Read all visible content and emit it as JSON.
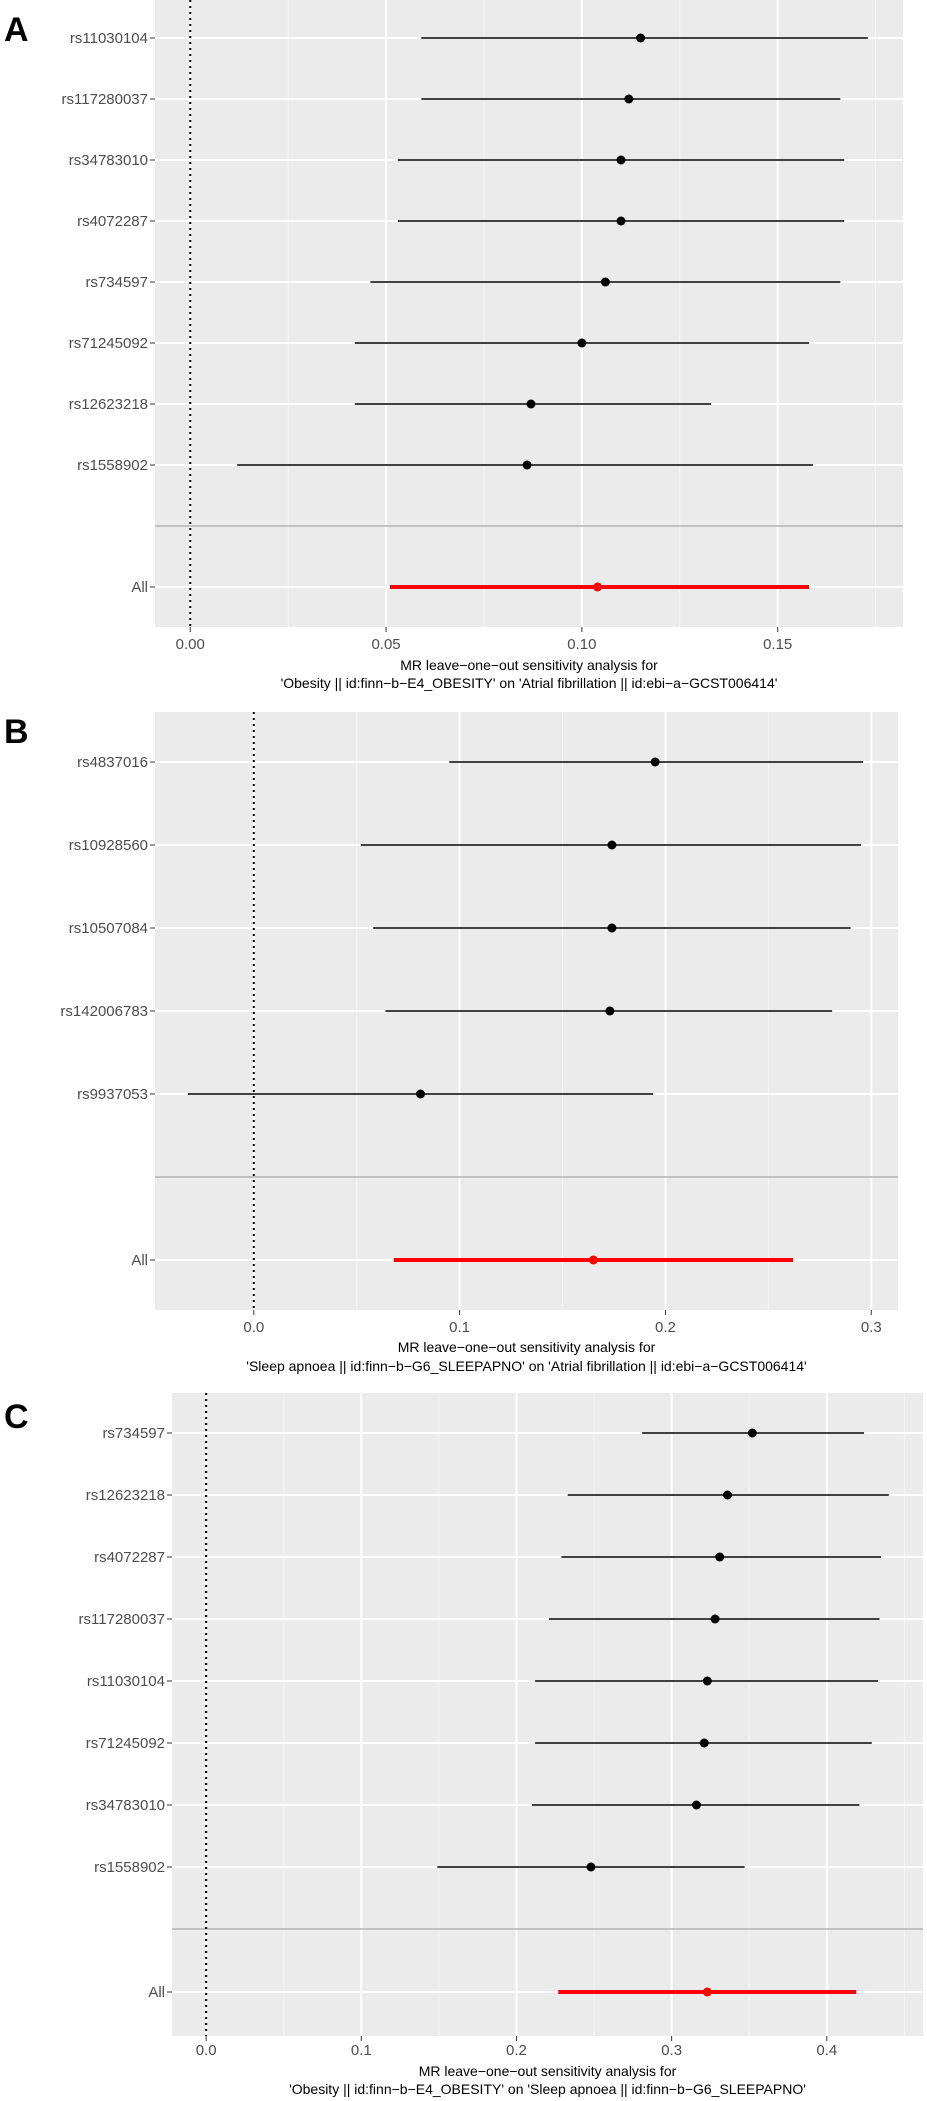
{
  "figure": {
    "colors": {
      "panel_bg": "#ebebeb",
      "grid_major": "#ffffff",
      "grid_minor": "#f5f5f5",
      "separator": "#b3b3b3",
      "point": "#000000",
      "overall": "#ff0000",
      "text": "#4d4d4d",
      "panel_letter": "#000000"
    }
  },
  "chart_data": [
    {
      "type": "scatter",
      "subtype": "forest",
      "panel": "A",
      "title": "",
      "xlabel": "MR leave−one−out sensitivity analysis for",
      "xlabel2": "'Obesity || id:finn−b−E4_OBESITY' on 'Atrial fibrillation || id:ebi−a−GCST006414'",
      "ylabel": "",
      "xlim": [
        -0.009,
        0.182
      ],
      "xticks": [
        0.0,
        0.05,
        0.1,
        0.15
      ],
      "xtick_labels": [
        "0.00",
        "0.05",
        "0.10",
        "0.15"
      ],
      "rows": [
        {
          "label": "rs11030104",
          "estimate": 0.115,
          "lower": 0.059,
          "upper": 0.173
        },
        {
          "label": "rs117280037",
          "estimate": 0.112,
          "lower": 0.059,
          "upper": 0.166
        },
        {
          "label": "rs34783010",
          "estimate": 0.11,
          "lower": 0.053,
          "upper": 0.167
        },
        {
          "label": "rs4072287",
          "estimate": 0.11,
          "lower": 0.053,
          "upper": 0.167
        },
        {
          "label": "rs734597",
          "estimate": 0.106,
          "lower": 0.046,
          "upper": 0.166
        },
        {
          "label": "rs71245092",
          "estimate": 0.1,
          "lower": 0.042,
          "upper": 0.158
        },
        {
          "label": "rs12623218",
          "estimate": 0.087,
          "lower": 0.042,
          "upper": 0.133
        },
        {
          "label": "rs1558902",
          "estimate": 0.086,
          "lower": 0.012,
          "upper": 0.159
        }
      ],
      "overall": {
        "label": "All",
        "estimate": 0.104,
        "lower": 0.051,
        "upper": 0.158
      }
    },
    {
      "type": "scatter",
      "subtype": "forest",
      "panel": "B",
      "title": "",
      "xlabel": "MR leave−one−out sensitivity analysis for",
      "xlabel2": "'Sleep apnoea || id:finn−b−G6_SLEEPAPNO' on 'Atrial fibrillation || id:ebi−a−GCST006414'",
      "ylabel": "",
      "xlim": [
        -0.048,
        0.313
      ],
      "xticks": [
        0.0,
        0.1,
        0.2,
        0.3
      ],
      "xtick_labels": [
        "0.0",
        "0.1",
        "0.2",
        "0.3"
      ],
      "rows": [
        {
          "label": "rs4837016",
          "estimate": 0.195,
          "lower": 0.095,
          "upper": 0.296
        },
        {
          "label": "rs10928560",
          "estimate": 0.174,
          "lower": 0.052,
          "upper": 0.295
        },
        {
          "label": "rs10507084",
          "estimate": 0.174,
          "lower": 0.058,
          "upper": 0.29
        },
        {
          "label": "rs142006783",
          "estimate": 0.173,
          "lower": 0.064,
          "upper": 0.281
        },
        {
          "label": "rs9937053",
          "estimate": 0.081,
          "lower": -0.032,
          "upper": 0.194
        }
      ],
      "overall": {
        "label": "All",
        "estimate": 0.165,
        "lower": 0.068,
        "upper": 0.262
      }
    },
    {
      "type": "scatter",
      "subtype": "forest",
      "panel": "C",
      "title": "",
      "xlabel": "MR leave−one−out sensitivity analysis for",
      "xlabel2": "'Obesity || id:finn−b−E4_OBESITY' on 'Sleep apnoea || id:finn−b−G6_SLEEPAPNO'",
      "ylabel": "",
      "xlim": [
        -0.022,
        0.462
      ],
      "xticks": [
        0.0,
        0.1,
        0.2,
        0.3,
        0.4
      ],
      "xtick_labels": [
        "0.0",
        "0.1",
        "0.2",
        "0.3",
        "0.4"
      ],
      "rows": [
        {
          "label": "rs734597",
          "estimate": 0.352,
          "lower": 0.281,
          "upper": 0.424
        },
        {
          "label": "rs12623218",
          "estimate": 0.336,
          "lower": 0.233,
          "upper": 0.44
        },
        {
          "label": "rs4072287",
          "estimate": 0.331,
          "lower": 0.229,
          "upper": 0.435
        },
        {
          "label": "rs117280037",
          "estimate": 0.328,
          "lower": 0.221,
          "upper": 0.434
        },
        {
          "label": "rs11030104",
          "estimate": 0.323,
          "lower": 0.212,
          "upper": 0.433
        },
        {
          "label": "rs71245092",
          "estimate": 0.321,
          "lower": 0.212,
          "upper": 0.429
        },
        {
          "label": "rs34783010",
          "estimate": 0.316,
          "lower": 0.21,
          "upper": 0.421
        },
        {
          "label": "rs1558902",
          "estimate": 0.248,
          "lower": 0.149,
          "upper": 0.347
        }
      ],
      "overall": {
        "label": "All",
        "estimate": 0.323,
        "lower": 0.227,
        "upper": 0.419
      }
    }
  ]
}
